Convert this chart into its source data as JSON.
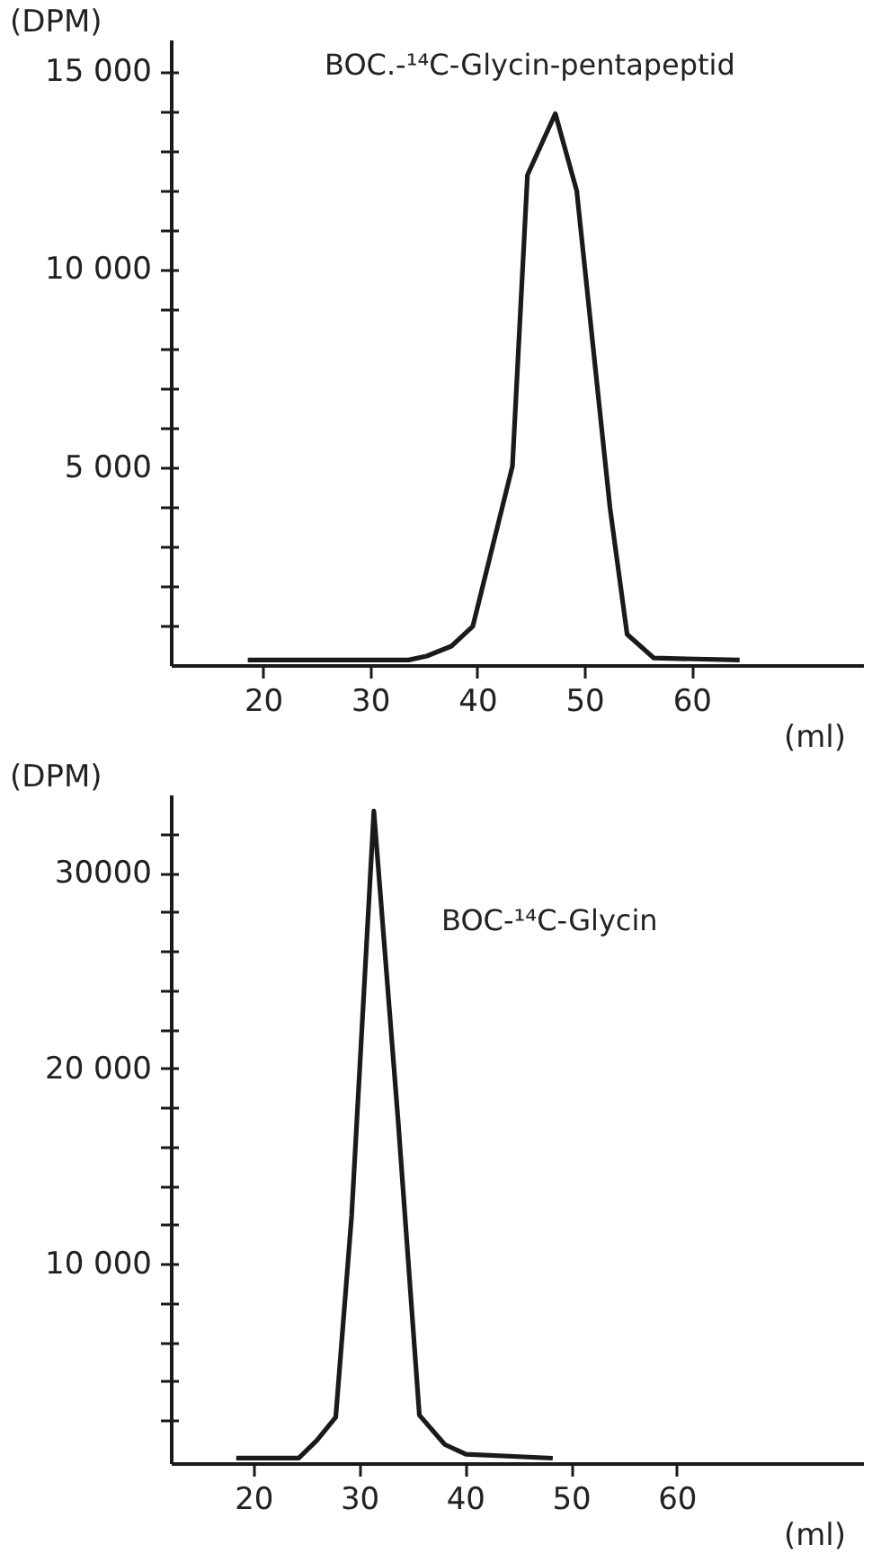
{
  "chart_data": [
    {
      "type": "line",
      "ylabel": "(DPM)",
      "xlabel": "(ml)",
      "annotations": [
        "BOC.-¹⁴C-Glycin-pentapeptid"
      ],
      "x": [
        18.5,
        33.5,
        35.2,
        37.5,
        39.5,
        43.2,
        44.6,
        47.2,
        49.2,
        52.3,
        53.9,
        56.4,
        64.4
      ],
      "series": [
        {
          "color": "#1a1a1a",
          "values": [
            150,
            150,
            250,
            500,
            1000,
            5050,
            12400,
            13950,
            12000,
            4000,
            800,
            200,
            150
          ]
        }
      ],
      "xlim": [
        11.4,
        76
      ],
      "ylim": [
        0,
        15800
      ],
      "xticks": [
        20,
        30,
        40,
        50,
        60
      ],
      "yticks": [
        {
          "value": 1000,
          "label": null
        },
        {
          "value": 2000,
          "label": null
        },
        {
          "value": 3000,
          "label": null
        },
        {
          "value": 4000,
          "label": null
        },
        {
          "value": 5000,
          "label": "5 000"
        },
        {
          "value": 6000,
          "label": null
        },
        {
          "value": 7000,
          "label": null
        },
        {
          "value": 8000,
          "label": null
        },
        {
          "value": 9000,
          "label": null
        },
        {
          "value": 10000,
          "label": "10 000"
        },
        {
          "value": 11000,
          "label": null
        },
        {
          "value": 12000,
          "label": null
        },
        {
          "value": 13000,
          "label": null
        },
        {
          "value": 14000,
          "label": null
        },
        {
          "value": 15000,
          "label": "15 000"
        }
      ],
      "grid": false,
      "line_style": "solid",
      "marker": "none"
    },
    {
      "type": "line",
      "ylabel": "(DPM)",
      "xlabel": "(ml)",
      "annotations": [
        "BOC-¹⁴C-Glycin"
      ],
      "x": [
        18.3,
        24.2,
        25.9,
        27.7,
        29.2,
        31.3,
        33.6,
        35.6,
        38.0,
        40.0,
        48.2
      ],
      "series": [
        {
          "color": "#1a1a1a",
          "values": [
            100,
            100,
            1000,
            2200,
            12500,
            33200,
            17300,
            2300,
            800,
            300,
            100
          ]
        }
      ],
      "xlim": [
        12.2,
        77.6
      ],
      "ylim": [
        -200,
        34000
      ],
      "xticks": [
        20,
        30,
        40,
        50,
        60
      ],
      "yticks": [
        {
          "value": 2000,
          "label": null
        },
        {
          "value": 4000,
          "label": null
        },
        {
          "value": 6000,
          "label": null
        },
        {
          "value": 8000,
          "label": null
        },
        {
          "value": 10000,
          "label": "10 000"
        },
        {
          "value": 12000,
          "label": null
        },
        {
          "value": 14000,
          "label": null
        },
        {
          "value": 16000,
          "label": null
        },
        {
          "value": 18000,
          "label": null
        },
        {
          "value": 20000,
          "label": "20 000"
        },
        {
          "value": 22000,
          "label": null
        },
        {
          "value": 24000,
          "label": null
        },
        {
          "value": 26000,
          "label": null
        },
        {
          "value": 28000,
          "label": null
        },
        {
          "value": 30000,
          "label": "30000"
        },
        {
          "value": 32000,
          "label": null
        }
      ],
      "grid": false,
      "line_style": "solid",
      "marker": "none"
    }
  ]
}
